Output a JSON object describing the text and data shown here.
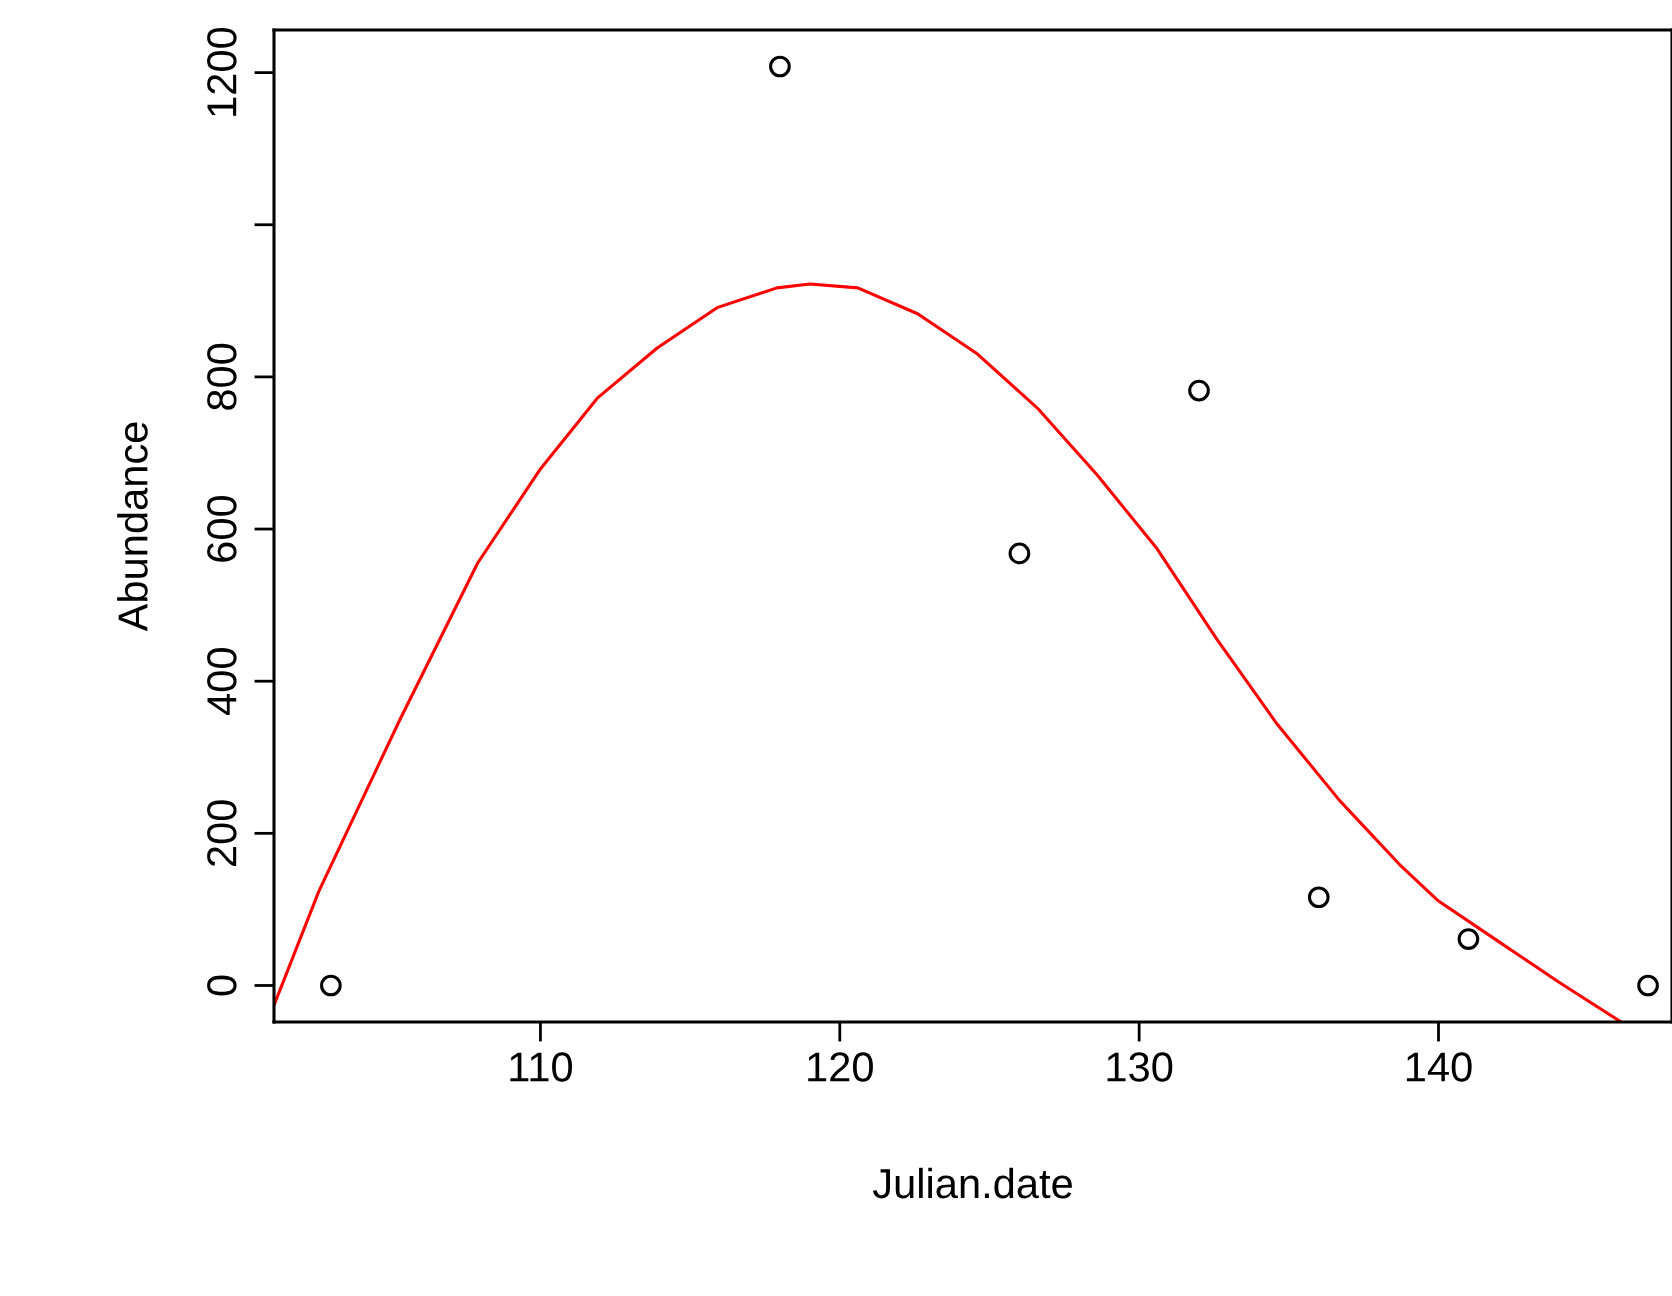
{
  "chart_data": {
    "type": "scatter",
    "xlabel": "Julian.date",
    "ylabel": "Abundance",
    "xlim": [
      101.1,
      147.8
    ],
    "ylim": [
      -48,
      1256
    ],
    "xticks": [
      110,
      120,
      130,
      140
    ],
    "yticks": [
      0,
      200,
      400,
      600,
      800,
      {
        "value": 1000,
        "label": null
      },
      1200
    ],
    "grid": false,
    "legend": false,
    "series": [
      {
        "marker": "circle",
        "color": "#000000",
        "x": [
          103,
          118,
          126,
          132,
          136,
          141,
          147
        ],
        "values": [
          0,
          1208,
          568,
          782,
          116,
          61,
          0
        ]
      },
      {
        "type": "line",
        "marker": "none",
        "color": "#ff0000",
        "x": [
          101.1,
          102.6,
          105.3,
          107.9,
          110,
          111.9,
          113.9,
          115.9,
          117.9,
          119,
          120.6,
          122.6,
          124.6,
          126.6,
          128.6,
          130.6,
          132.6,
          134.6,
          136.7,
          138.7,
          140,
          142,
          144,
          146.1
        ],
        "values": [
          -26,
          124,
          349,
          555,
          679,
          772,
          838,
          891,
          917,
          922,
          917,
          883,
          830,
          759,
          671,
          574,
          455,
          344,
          243,
          159,
          111,
          58,
          5,
          -48
        ]
      }
    ]
  }
}
